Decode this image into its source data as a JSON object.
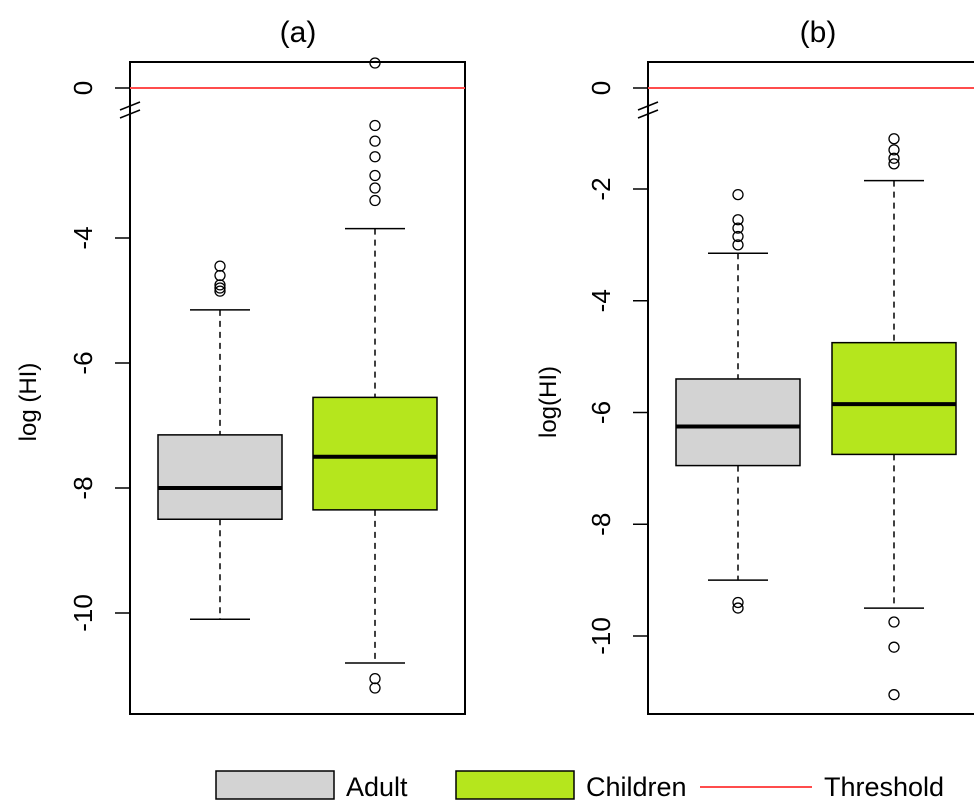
{
  "chart_data": [
    {
      "type": "box",
      "title": "(a)",
      "ylabel": "log (HI)",
      "yticks": [
        0,
        -4,
        -6,
        -8,
        -10
      ],
      "axis_break_between": [
        0,
        -4
      ],
      "ylim_lower": [
        -3.1,
        -11.3
      ],
      "threshold": 0,
      "series": [
        {
          "name": "Adult",
          "color": "#d3d3d3",
          "min": -10.1,
          "q1": -8.5,
          "median": -8.0,
          "q3": -7.15,
          "max": -5.15,
          "outliers": [
            -4.45,
            -4.6,
            -4.75,
            -4.8,
            -4.85
          ]
        },
        {
          "name": "Children",
          "color": "#b5e61d",
          "min": -10.8,
          "q1": -8.35,
          "median": -7.5,
          "q3": -6.55,
          "max": -3.85,
          "outliers": [
            -1.2,
            -2.2,
            -2.45,
            -2.7,
            -3.0,
            -3.2,
            -3.4,
            -11.05,
            -11.2
          ]
        }
      ]
    },
    {
      "type": "box",
      "title": "(b)",
      "ylabel": "log(HI)",
      "yticks": [
        0,
        -2,
        -4,
        -6,
        -8,
        -10
      ],
      "axis_break_between": [
        0,
        -2
      ],
      "ylim_lower": [
        -0.6,
        -11.1
      ],
      "threshold": 0,
      "series": [
        {
          "name": "Adult",
          "color": "#d3d3d3",
          "min": -9.0,
          "q1": -6.95,
          "median": -6.25,
          "q3": -5.4,
          "max": -3.15,
          "outliers": [
            -2.1,
            -2.55,
            -2.7,
            -2.85,
            -3.0,
            -9.4,
            -9.5
          ]
        },
        {
          "name": "Children",
          "color": "#b5e61d",
          "min": -9.5,
          "q1": -6.75,
          "median": -5.85,
          "q3": -4.75,
          "max": -1.85,
          "outliers": [
            -1.1,
            -1.3,
            -1.45,
            -1.55,
            -9.75,
            -10.2,
            -11.05
          ]
        }
      ]
    }
  ],
  "legend": {
    "items": [
      {
        "label": "Adult",
        "kind": "box",
        "color": "#d3d3d3"
      },
      {
        "label": "Children",
        "kind": "box",
        "color": "#b5e61d"
      },
      {
        "label": "Threshold",
        "kind": "line",
        "color": "#ff4c4c"
      }
    ]
  }
}
